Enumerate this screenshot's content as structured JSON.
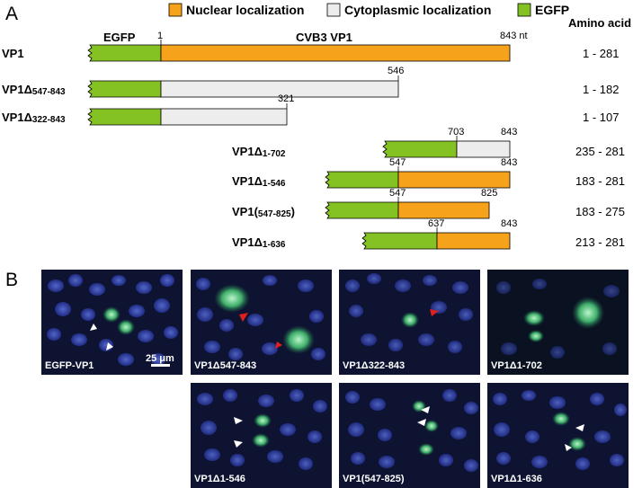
{
  "panel_a_letter": "A",
  "panel_b_letter": "B",
  "legend": [
    {
      "label": "Nuclear localization",
      "color": "#f7a21b"
    },
    {
      "label": "Cytoplasmic localization",
      "color": "#ededed"
    },
    {
      "label": "EGFP",
      "color": "#84c224"
    }
  ],
  "column_header": "Amino acid",
  "domain_labels": {
    "egfp": "EGFP",
    "vp1": "CVB3 VP1"
  },
  "constructs": [
    {
      "name": "VP1",
      "sub": "",
      "suffix": "",
      "amino_acid": "1 - 281",
      "start_nt": "1",
      "end_nt": "843 nt",
      "localization": "nuclear"
    },
    {
      "name": "VP1Δ",
      "sub": "547-843",
      "suffix": "",
      "amino_acid": "1 - 182",
      "start_nt": "",
      "end_nt": "546",
      "localization": "cytoplasmic"
    },
    {
      "name": "VP1Δ",
      "sub": "322-843",
      "suffix": "",
      "amino_acid": "1 - 107",
      "start_nt": "",
      "end_nt": "321",
      "localization": "cytoplasmic"
    },
    {
      "name": "VP1Δ",
      "sub": "1-702",
      "suffix": "",
      "amino_acid": "235 - 281",
      "start_nt": "703",
      "end_nt": "843",
      "localization": "cytoplasmic"
    },
    {
      "name": "VP1Δ",
      "sub": "1-546",
      "suffix": "",
      "amino_acid": "183 - 281",
      "start_nt": "547",
      "end_nt": "843",
      "localization": "nuclear"
    },
    {
      "name": "VP1(",
      "sub": "547-825",
      "suffix": ")",
      "amino_acid": "183 - 275",
      "start_nt": "547",
      "end_nt": "825",
      "localization": "nuclear"
    },
    {
      "name": "VP1Δ",
      "sub": "1-636",
      "suffix": "",
      "amino_acid": "213 - 281",
      "start_nt": "637",
      "end_nt": "843",
      "localization": "nuclear"
    }
  ],
  "micrographs": [
    {
      "label": "EGFP-VP1",
      "arrows": [
        "white",
        "white"
      ]
    },
    {
      "label": "VP1Δ547-843",
      "arrows": [
        "red",
        "red"
      ]
    },
    {
      "label": "VP1Δ322-843",
      "arrows": [
        "red"
      ]
    },
    {
      "label": "VP1Δ1-702",
      "arrows": []
    },
    {
      "label": "VP1Δ1-546",
      "arrows": [
        "white",
        "white"
      ]
    },
    {
      "label": "VP1(547-825)",
      "arrows": [
        "white",
        "white"
      ]
    },
    {
      "label": "VP1Δ1-636",
      "arrows": [
        "white",
        "white"
      ]
    }
  ],
  "scale_bar": "25 μm"
}
